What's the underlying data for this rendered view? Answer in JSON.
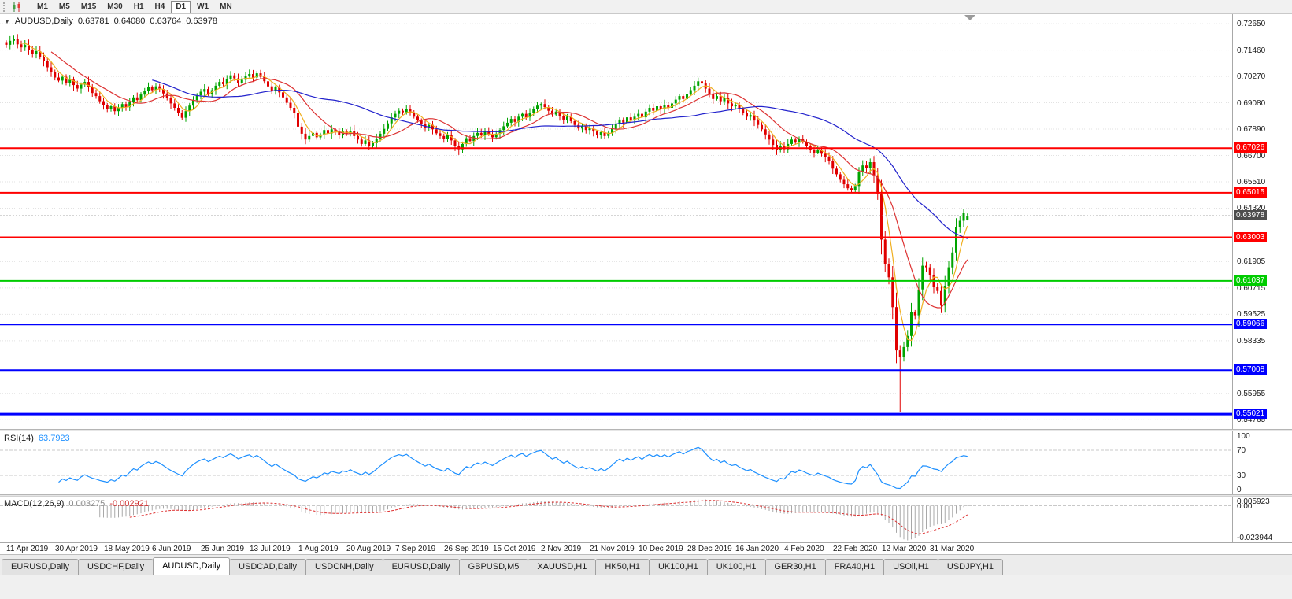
{
  "toolbar": {
    "timeframes": [
      "M1",
      "M5",
      "M15",
      "M30",
      "H1",
      "H4",
      "D1",
      "W1",
      "MN"
    ],
    "active_timeframe": "D1"
  },
  "icons": {
    "expand_arrow": "▼"
  },
  "main_chart": {
    "header": {
      "symbol": "AUDUSD,Daily",
      "open": "0.63781",
      "high": "0.64080",
      "low": "0.63764",
      "close": "0.63978"
    },
    "price_axis_ticks": [
      "0.72650",
      "0.71460",
      "0.70270",
      "0.69080",
      "0.67890",
      "0.66700",
      "0.65510",
      "0.64320",
      "0.61905",
      "0.60715",
      "0.59525",
      "0.58335",
      "0.55955",
      "0.54765"
    ],
    "current_price": {
      "value": "0.63978",
      "badge_color": "#4d4d4d"
    },
    "horizontal_lines": [
      {
        "value": 0.67026,
        "label": "0.67026",
        "color": "#FF0000",
        "width": 2
      },
      {
        "value": 0.65015,
        "label": "0.65015",
        "color": "#FF0000",
        "width": 2
      },
      {
        "value": 0.63003,
        "label": "0.63003",
        "color": "#FF0000",
        "width": 2
      },
      {
        "value": 0.61037,
        "label": "0.61037",
        "color": "#00CC00",
        "width": 2
      },
      {
        "value": 0.59066,
        "label": "0.59066",
        "color": "#0000FF",
        "width": 2
      },
      {
        "value": 0.57008,
        "label": "0.57008",
        "color": "#0000FF",
        "width": 2
      },
      {
        "value": 0.55021,
        "label": "0.55021",
        "color": "#0000FF",
        "width": 3
      }
    ],
    "moving_averages": [
      {
        "period": 5,
        "color": "#EFAF20"
      },
      {
        "period": 13,
        "color": "#DD3333"
      },
      {
        "period": 40,
        "color": "#2222CC"
      }
    ]
  },
  "chart_data": {
    "type": "candlestick",
    "title": "AUDUSD,Daily",
    "x_axis_labels": [
      "11 Apr 2019",
      "30 Apr 2019",
      "18 May 2019",
      "6 Jun 2019",
      "25 Jun 2019",
      "13 Jul 2019",
      "1 Aug 2019",
      "20 Aug 2019",
      "7 Sep 2019",
      "26 Sep 2019",
      "15 Oct 2019",
      "2 Nov 2019",
      "21 Nov 2019",
      "10 Dec 2019",
      "28 Dec 2019",
      "16 Jan 2020",
      "4 Feb 2020",
      "22 Feb 2020",
      "12 Mar 2020",
      "31 Mar 2020"
    ],
    "bars_per_label": 13,
    "y_range": [
      0.5435,
      0.7308
    ],
    "closes": [
      0.717,
      0.7188,
      0.7196,
      0.7172,
      0.7158,
      0.7169,
      0.7145,
      0.7128,
      0.7141,
      0.7116,
      0.7095,
      0.7068,
      0.7046,
      0.7022,
      0.7008,
      0.7025,
      0.6998,
      0.7012,
      0.6988,
      0.6972,
      0.699,
      0.7002,
      0.6978,
      0.6952,
      0.6938,
      0.6915,
      0.6898,
      0.688,
      0.6892,
      0.687,
      0.6885,
      0.6902,
      0.6888,
      0.691,
      0.6932,
      0.692,
      0.6945,
      0.6962,
      0.6978,
      0.6965,
      0.6982,
      0.697,
      0.695,
      0.6928,
      0.6905,
      0.6885,
      0.6862,
      0.684,
      0.687,
      0.6895,
      0.692,
      0.6942,
      0.6958,
      0.697,
      0.6948,
      0.6965,
      0.6985,
      0.7002,
      0.6992,
      0.7015,
      0.7032,
      0.7018,
      0.6998,
      0.7012,
      0.7028,
      0.7038,
      0.7022,
      0.7041,
      0.7025,
      0.7005,
      0.6982,
      0.696,
      0.6978,
      0.6955,
      0.6932,
      0.6908,
      0.6885,
      0.6862,
      0.68,
      0.6768,
      0.6742,
      0.6758,
      0.6772,
      0.6752,
      0.6765,
      0.6785,
      0.677,
      0.6788,
      0.6775,
      0.6762,
      0.6778,
      0.6768,
      0.6782,
      0.6758,
      0.6742,
      0.6722,
      0.6738,
      0.6712,
      0.6725,
      0.6745,
      0.6768,
      0.679,
      0.6815,
      0.6842,
      0.6858,
      0.6872,
      0.6865,
      0.688,
      0.6862,
      0.6845,
      0.6828,
      0.6812,
      0.6795,
      0.6808,
      0.6788,
      0.677,
      0.6758,
      0.6745,
      0.6762,
      0.6738,
      0.6712,
      0.6698,
      0.6722,
      0.6748,
      0.6735,
      0.6758,
      0.6772,
      0.6762,
      0.6778,
      0.6765,
      0.6752,
      0.6768,
      0.6785,
      0.6802,
      0.6818,
      0.6835,
      0.6822,
      0.6845,
      0.6858,
      0.6842,
      0.6862,
      0.6878,
      0.6895,
      0.6902,
      0.6888,
      0.6872,
      0.6855,
      0.6868,
      0.6848,
      0.6832,
      0.6845,
      0.6825,
      0.6808,
      0.6792,
      0.6802,
      0.6785,
      0.6792,
      0.6778,
      0.6762,
      0.6775,
      0.6758,
      0.6772,
      0.679,
      0.6812,
      0.6832,
      0.6818,
      0.6842,
      0.6828,
      0.6845,
      0.6858,
      0.6842,
      0.6868,
      0.6885,
      0.6872,
      0.6892,
      0.6878,
      0.6898,
      0.6885,
      0.6905,
      0.6922,
      0.6938,
      0.6925,
      0.6948,
      0.6965,
      0.6985,
      0.7005,
      0.6995,
      0.6972,
      0.6948,
      0.6925,
      0.6938,
      0.6915,
      0.6928,
      0.6905,
      0.6892,
      0.6898,
      0.6878,
      0.6862,
      0.6845,
      0.6852,
      0.6828,
      0.6808,
      0.6788,
      0.6765,
      0.6742,
      0.6718,
      0.6695,
      0.6712,
      0.6698,
      0.6722,
      0.6742,
      0.6728,
      0.6745,
      0.6732,
      0.6712,
      0.6695,
      0.6682,
      0.6695,
      0.6678,
      0.6662,
      0.6645,
      0.661,
      0.6585,
      0.656,
      0.654,
      0.6522,
      0.6515,
      0.6532,
      0.6595,
      0.6625,
      0.6612,
      0.664,
      0.658,
      0.6498,
      0.629,
      0.618,
      0.612,
      0.5985,
      0.579,
      0.576,
      0.5805,
      0.5855,
      0.5962,
      0.5948,
      0.6065,
      0.6172,
      0.6165,
      0.6128,
      0.6075,
      0.6058,
      0.5992,
      0.6082,
      0.6165,
      0.6232,
      0.6345,
      0.6375,
      0.6412,
      0.63978
    ],
    "wick_overrides": {
      "121": {
        "low": 0.6672
      },
      "239": {
        "low": 0.551
      },
      "257": {
        "open": 0.63781,
        "high": 0.6408,
        "low": 0.63764
      }
    }
  },
  "rsi_panel": {
    "name": "RSI(14)",
    "value": "63.7923",
    "line_color": "#1E90FF",
    "axis_labels": [
      "100",
      "70",
      "30",
      "0"
    ],
    "levels": [
      70,
      30
    ]
  },
  "macd_panel": {
    "name": "MACD(12,26,9)",
    "main_value": "0.003275",
    "signal_value": "-0.002921",
    "axis_labels": [
      "0.005923",
      "0.00",
      "-0.023944"
    ],
    "range": [
      -0.023944,
      0.005923
    ],
    "histogram_color": "#a8a8a8",
    "signal_color": "#DD3030"
  },
  "tabs": [
    {
      "label": "EURUSD,Daily",
      "active": false
    },
    {
      "label": "USDCHF,Daily",
      "active": false
    },
    {
      "label": "AUDUSD,Daily",
      "active": true
    },
    {
      "label": "USDCAD,Daily",
      "active": false
    },
    {
      "label": "USDCNH,Daily",
      "active": false
    },
    {
      "label": "EURUSD,Daily",
      "active": false
    },
    {
      "label": "GBPUSD,M5",
      "active": false
    },
    {
      "label": "XAUUSD,H1",
      "active": false
    },
    {
      "label": "HK50,H1",
      "active": false
    },
    {
      "label": "UK100,H1",
      "active": false
    },
    {
      "label": "UK100,H1",
      "active": false
    },
    {
      "label": "GER30,H1",
      "active": false
    },
    {
      "label": "FRA40,H1",
      "active": false
    },
    {
      "label": "USOil,H1",
      "active": false
    },
    {
      "label": "USDJPY,H1",
      "active": false
    }
  ],
  "colors": {
    "background": "#FFFFFF",
    "grid": "#E2E2E2",
    "bull": "#00A400",
    "bear": "#E00000",
    "axis_text": "#1A1A1A"
  }
}
